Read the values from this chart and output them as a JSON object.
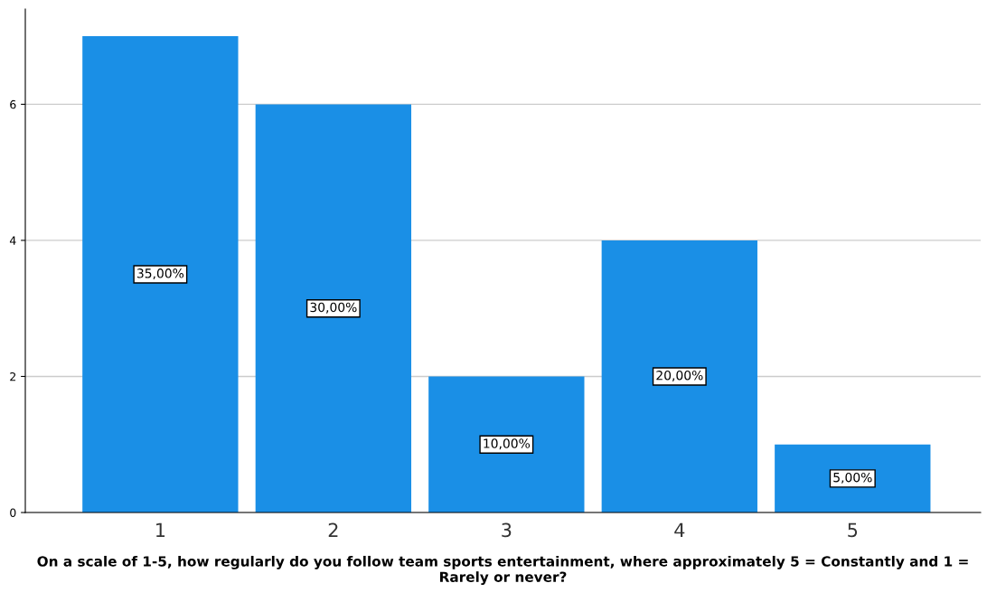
{
  "chart_data": {
    "type": "bar",
    "xlabel": "On a scale of 1-5, how regularly do you follow team sports entertainment, where approximately 5 = Constantly and 1 = Rarely or never?",
    "categories": [
      "1",
      "2",
      "3",
      "4",
      "5"
    ],
    "values": [
      7,
      6,
      2,
      4,
      1
    ],
    "annotations": [
      "35,00%",
      "30,00%",
      "10,00%",
      "20,00%",
      "5,00%"
    ],
    "color": "#1a8fe6",
    "ylim": [
      0,
      7.4
    ],
    "yticks": [
      0,
      2,
      4,
      6
    ],
    "grid": "y"
  }
}
